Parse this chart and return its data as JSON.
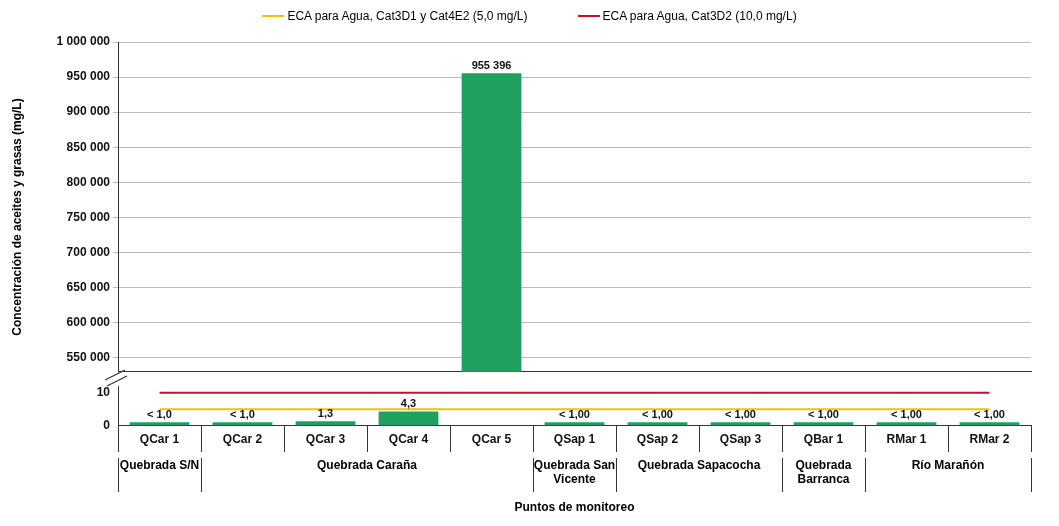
{
  "chart_data": [
    {
      "type": "bar",
      "ylabel": "Concentración de aceites y grasas (mg/L)",
      "categories": [
        null,
        null,
        null,
        null,
        null,
        null,
        null,
        null,
        null,
        null,
        null
      ],
      "values": [
        null,
        null,
        null,
        null,
        955396,
        null,
        null,
        null,
        null,
        null,
        null
      ],
      "value_labels": [
        null,
        null,
        null,
        null,
        "955 396",
        null,
        null,
        null,
        null,
        null,
        null
      ],
      "color": "#20a060",
      "ylim": [
        530000,
        1000000
      ],
      "yticks": [
        550000,
        600000,
        650000,
        700000,
        750000,
        800000,
        850000,
        900000,
        950000,
        1000000
      ],
      "grid": "y",
      "tick_labels": "y"
    },
    {
      "type": "bar",
      "xlabel": "Puntos de monitoreo",
      "categories": [
        "QCar 1",
        "QCar 2",
        "QCar 3",
        "QCar 4",
        "QCar 5",
        "QSap 1",
        "QSap 2",
        "QSap 3",
        "QBar 1",
        "RMar 1",
        "RMar 2"
      ],
      "values": [
        1.0,
        1.0,
        1.3,
        4.3,
        null,
        1.0,
        1.0,
        1.0,
        1.0,
        1.0,
        1.0
      ],
      "value_labels": [
        "< 1,0",
        "< 1,0",
        "1,3",
        "4,3",
        null,
        "< 1,00",
        "< 1,00",
        "< 1,00",
        "< 1,00",
        "< 1,00",
        "< 1,00"
      ],
      "color": "#20a060",
      "ylim": [
        0,
        12
      ],
      "yticks": [
        0,
        10
      ],
      "legend": "top",
      "ref_lines": [
        {
          "axis": "y",
          "value": 5,
          "label": "ECA para Agua, Cat3D1 y Cat4E2 (5,0 mg/L)",
          "color": "#f2c200"
        },
        {
          "axis": "y",
          "value": 10,
          "label": "ECA para Agua, Cat3D2 (10,0 mg/L)",
          "color": "#c8102e"
        }
      ],
      "annotations": [
        "Quebrada S/N",
        "Quebrada Caraña",
        "Quebrada San Vicente",
        "Quebrada Sapacocha",
        "Quebrada Barranca",
        "Río Marañón"
      ]
    }
  ]
}
